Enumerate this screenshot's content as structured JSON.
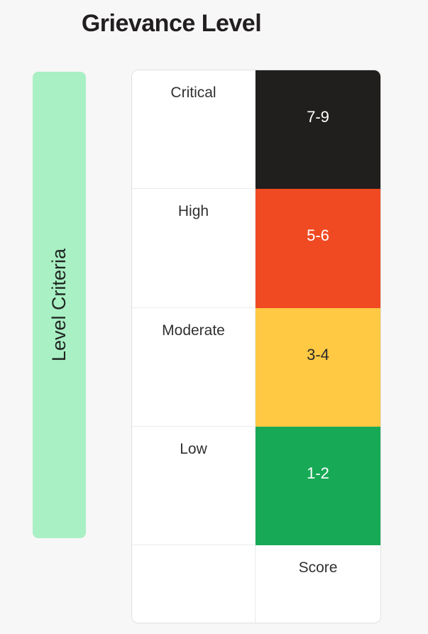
{
  "title": "Grievance Level",
  "axis": {
    "y_label": "Level Criteria",
    "bar_color": "#a9f0c4"
  },
  "footer_label": "Score",
  "rows": [
    {
      "level": "Critical",
      "score": "7-9",
      "color": "#211e1e",
      "text_color": "#ffffff"
    },
    {
      "level": "High",
      "score": "5-6",
      "color": "#f04a23",
      "text_color": "#ffffff"
    },
    {
      "level": "Moderate",
      "score": "3-4",
      "color": "#ffc943",
      "text_color": "#2b2b2b"
    },
    {
      "level": "Low",
      "score": "1-2",
      "color": "#18a957",
      "text_color": "#ffffff"
    }
  ],
  "chart_data": {
    "type": "table",
    "title": "Grievance Level",
    "ylabel": "Level Criteria",
    "columns": [
      "Level Criteria",
      "Score"
    ],
    "rows": [
      [
        "Critical",
        "7-9"
      ],
      [
        "High",
        "5-6"
      ],
      [
        "Moderate",
        "3-4"
      ],
      [
        "Low",
        "1-2"
      ]
    ],
    "row_colors": [
      "#211e1e",
      "#f04a23",
      "#ffc943",
      "#18a957"
    ],
    "legend_position": "none",
    "grid": false
  },
  "colors": {
    "background": "#f8f7f7",
    "table_border": "#e0e0e0",
    "title_text": "#221f20"
  }
}
